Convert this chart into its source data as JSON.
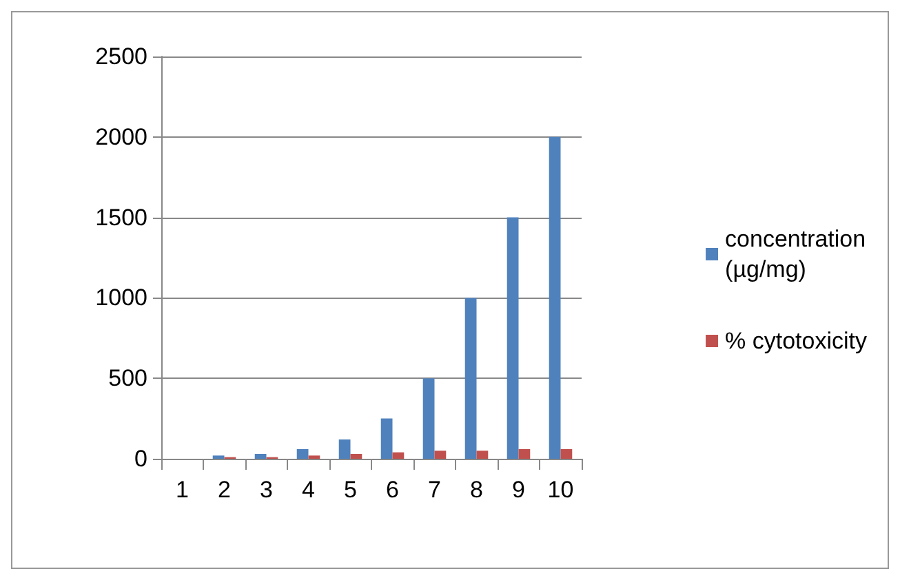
{
  "chart_data": {
    "type": "bar",
    "categories": [
      "1",
      "2",
      "3",
      "4",
      "5",
      "6",
      "7",
      "8",
      "9",
      "10"
    ],
    "series": [
      {
        "name": "concentration (µg/mg)",
        "color": "#4f81bd",
        "values": [
          0,
          20,
          30,
          60,
          120,
          250,
          500,
          1000,
          1500,
          2000
        ]
      },
      {
        "name": "% cytotoxicity",
        "color": "#c0504d",
        "values": [
          0,
          10,
          10,
          20,
          30,
          40,
          50,
          50,
          60,
          60
        ]
      }
    ],
    "ylim": [
      0,
      2500
    ],
    "yticks": [
      0,
      500,
      1000,
      1500,
      2000,
      2500
    ],
    "grid": "y",
    "legend": "right"
  }
}
